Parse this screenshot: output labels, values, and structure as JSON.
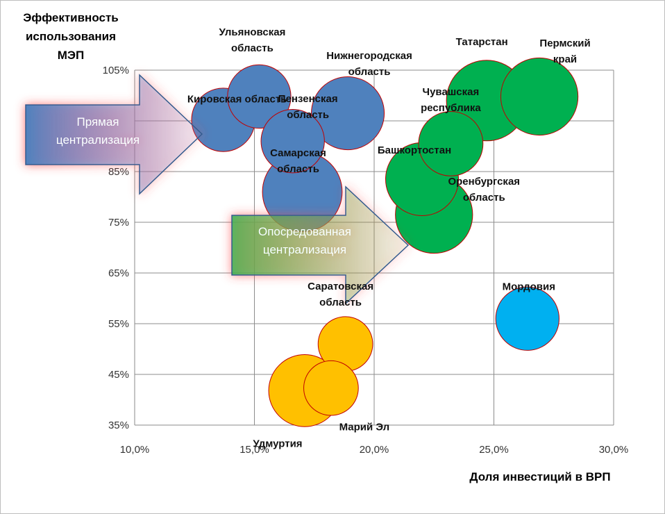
{
  "chart_data": {
    "type": "bubble",
    "title": "",
    "ylabel_lines": [
      "Эффективность",
      "использования",
      "МЭП"
    ],
    "xlabel": "Доля инвестиций в ВРП",
    "xlim": [
      0.1,
      0.3
    ],
    "ylim": [
      0.35,
      1.05
    ],
    "x_ticks": [
      0.1,
      0.15,
      0.2,
      0.25,
      0.3
    ],
    "x_tick_labels": [
      "10,0%",
      "15,0%",
      "20,0%",
      "25,0%",
      "30,0%"
    ],
    "y_ticks": [
      0.35,
      0.45,
      0.55,
      0.65,
      0.75,
      0.85,
      0.95,
      1.05
    ],
    "y_tick_labels": [
      "35%",
      "45%",
      "55%",
      "65%",
      "75%",
      "85%",
      "",
      "105%"
    ],
    "grid": true,
    "colors": {
      "direct": "#4f81bd",
      "mediated": "#00b050",
      "other": "#00b0f0",
      "low": "#ffc000",
      "bubble_edge": "#c00000"
    },
    "points": [
      {
        "name": "Кировская область",
        "label_lines": [
          "Кировская область"
        ],
        "x": 0.137,
        "y": 0.952,
        "size": 0.62,
        "group": "direct"
      },
      {
        "name": "Ульяновская область",
        "label_lines": [
          "Ульяновская",
          "область"
        ],
        "x": 0.152,
        "y": 0.998,
        "size": 0.62,
        "group": "direct"
      },
      {
        "name": "Пензенская область",
        "label_lines": [
          "Пензенская",
          "область"
        ],
        "x": 0.166,
        "y": 0.91,
        "size": 0.62,
        "group": "direct"
      },
      {
        "name": "Нижнегородская область",
        "label_lines": [
          "Нижнегородская",
          "область"
        ],
        "x": 0.189,
        "y": 0.965,
        "size": 0.82,
        "group": "direct"
      },
      {
        "name": "Самарская область",
        "label_lines": [
          "Самарская",
          "область"
        ],
        "x": 0.17,
        "y": 0.81,
        "size": 0.98,
        "group": "direct"
      },
      {
        "name": "Татарстан",
        "label_lines": [
          "Татарстан"
        ],
        "x": 0.247,
        "y": 0.99,
        "size": 1.0,
        "group": "mediated"
      },
      {
        "name": "Пермский край",
        "label_lines": [
          "Пермский",
          "край"
        ],
        "x": 0.269,
        "y": 0.998,
        "size": 0.92,
        "group": "mediated"
      },
      {
        "name": "Чувашская республика",
        "label_lines": [
          "Чувашская",
          "республика"
        ],
        "x": 0.232,
        "y": 0.905,
        "size": 0.64,
        "group": "mediated"
      },
      {
        "name": "Башкортостан",
        "label_lines": [
          "Башкортостан"
        ],
        "x": 0.22,
        "y": 0.835,
        "size": 0.82,
        "group": "mediated"
      },
      {
        "name": "Оренбургская область",
        "label_lines": [
          "Оренбургская",
          "область"
        ],
        "x": 0.225,
        "y": 0.765,
        "size": 0.92,
        "group": "mediated"
      },
      {
        "name": "Мордовия",
        "label_lines": [
          "Мордовия"
        ],
        "x": 0.264,
        "y": 0.56,
        "size": 0.62,
        "group": "other"
      },
      {
        "name": "Саратовская область",
        "label_lines": [
          "Саратовская",
          "область"
        ],
        "x": 0.188,
        "y": 0.51,
        "size": 0.46,
        "group": "low"
      },
      {
        "name": "Марий Эл",
        "label_lines": [
          "Марий Эл"
        ],
        "x": 0.182,
        "y": 0.423,
        "size": 0.46,
        "group": "low"
      },
      {
        "name": "Удмуртия",
        "label_lines": [
          "Удмуртия"
        ],
        "x": 0.171,
        "y": 0.418,
        "size": 0.8,
        "group": "low"
      }
    ],
    "annotations": [
      {
        "name": "direct",
        "lines": [
          "Прямая",
          "централизация"
        ]
      },
      {
        "name": "mediated",
        "lines": [
          "Опосредованная",
          "централизация"
        ]
      }
    ]
  }
}
